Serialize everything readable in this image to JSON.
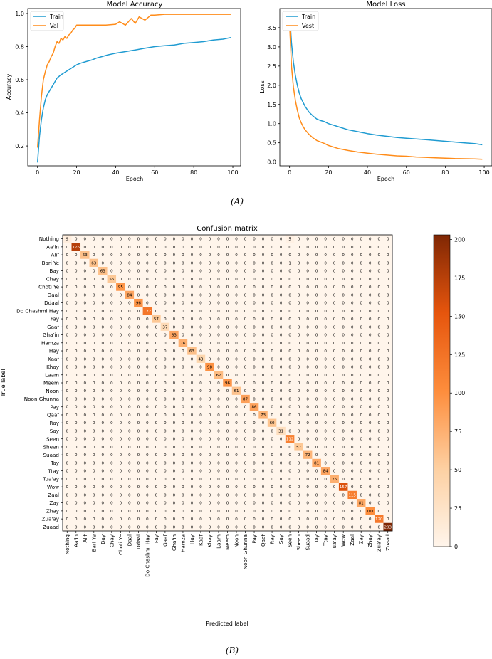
{
  "accuracy_chart": {
    "type": "line",
    "title": "Model Accuracy",
    "xlabel": "Epoch",
    "ylabel": "Accuracy",
    "xlim": [
      -5,
      104
    ],
    "ylim": [
      0.08,
      1.03
    ],
    "xticks": [
      0,
      20,
      40,
      60,
      80,
      100
    ],
    "yticks": [
      0.2,
      0.4,
      0.6,
      0.8,
      1.0
    ],
    "ytick_labels": [
      "0.2",
      "0.4",
      "0.6",
      "0.8",
      "1.0"
    ],
    "legend": "upper-left",
    "series": [
      {
        "name": "Train",
        "color": "#1f9bd1",
        "x": [
          0,
          1,
          2,
          3,
          4,
          5,
          6,
          7,
          8,
          9,
          10,
          12,
          14,
          16,
          18,
          20,
          22,
          25,
          28,
          30,
          33,
          36,
          40,
          45,
          50,
          55,
          60,
          65,
          70,
          75,
          80,
          85,
          90,
          95,
          99
        ],
        "y": [
          0.1,
          0.26,
          0.36,
          0.43,
          0.48,
          0.51,
          0.53,
          0.55,
          0.57,
          0.59,
          0.61,
          0.63,
          0.645,
          0.66,
          0.675,
          0.69,
          0.7,
          0.71,
          0.72,
          0.73,
          0.74,
          0.75,
          0.76,
          0.77,
          0.78,
          0.79,
          0.8,
          0.805,
          0.81,
          0.82,
          0.825,
          0.83,
          0.84,
          0.845,
          0.855
        ]
      },
      {
        "name": "Val",
        "color": "#ff8c1a",
        "x": [
          0,
          1,
          2,
          3,
          4,
          5,
          6,
          7,
          8,
          9,
          10,
          11,
          12,
          13,
          14,
          15,
          16,
          17,
          18,
          19,
          20,
          21,
          22,
          25,
          30,
          35,
          40,
          42,
          45,
          48,
          50,
          52,
          55,
          58,
          60,
          65,
          70,
          75,
          80,
          85,
          90,
          95,
          99
        ],
        "y": [
          0.19,
          0.36,
          0.5,
          0.6,
          0.65,
          0.69,
          0.71,
          0.74,
          0.76,
          0.8,
          0.83,
          0.82,
          0.85,
          0.84,
          0.86,
          0.85,
          0.87,
          0.88,
          0.9,
          0.91,
          0.93,
          0.93,
          0.93,
          0.93,
          0.93,
          0.93,
          0.935,
          0.95,
          0.93,
          0.97,
          0.94,
          0.98,
          0.96,
          0.99,
          0.99,
          0.995,
          0.995,
          0.995,
          0.995,
          0.995,
          0.995,
          0.995,
          0.995
        ]
      }
    ]
  },
  "loss_chart": {
    "type": "line",
    "title": "Model Loss",
    "xlabel": "Epoch",
    "ylabel": "Loss",
    "xlim": [
      -5,
      104
    ],
    "ylim": [
      -0.1,
      4.0
    ],
    "xticks": [
      0,
      20,
      40,
      60,
      80,
      100
    ],
    "yticks": [
      0.0,
      0.5,
      1.0,
      1.5,
      2.0,
      2.5,
      3.0,
      3.5
    ],
    "ytick_labels": [
      "0.0",
      "0.5",
      "1.0",
      "1.5",
      "2.0",
      "2.5",
      "3.0",
      "3.5"
    ],
    "legend": "upper-left",
    "series": [
      {
        "name": "Train",
        "color": "#1f9bd1",
        "x": [
          0,
          1,
          2,
          3,
          4,
          5,
          6,
          7,
          8,
          10,
          12,
          14,
          16,
          18,
          20,
          25,
          30,
          35,
          40,
          45,
          50,
          55,
          60,
          65,
          70,
          75,
          80,
          85,
          90,
          95,
          99
        ],
        "y": [
          3.9,
          3.1,
          2.6,
          2.25,
          2.0,
          1.8,
          1.65,
          1.55,
          1.45,
          1.3,
          1.2,
          1.12,
          1.08,
          1.05,
          1.0,
          0.92,
          0.84,
          0.79,
          0.74,
          0.7,
          0.67,
          0.64,
          0.62,
          0.6,
          0.58,
          0.56,
          0.54,
          0.52,
          0.5,
          0.48,
          0.45
        ]
      },
      {
        "name": "Vest",
        "color": "#ff8c1a",
        "x": [
          0,
          1,
          2,
          3,
          4,
          5,
          6,
          7,
          8,
          10,
          12,
          14,
          16,
          18,
          20,
          25,
          30,
          35,
          40,
          45,
          50,
          55,
          60,
          65,
          70,
          75,
          80,
          85,
          90,
          95,
          99
        ],
        "y": [
          3.6,
          2.5,
          1.95,
          1.6,
          1.35,
          1.15,
          1.02,
          0.92,
          0.84,
          0.72,
          0.63,
          0.56,
          0.52,
          0.48,
          0.43,
          0.35,
          0.3,
          0.26,
          0.23,
          0.2,
          0.18,
          0.16,
          0.15,
          0.13,
          0.12,
          0.11,
          0.1,
          0.09,
          0.085,
          0.08,
          0.07
        ]
      }
    ]
  },
  "caption_a": "(A)",
  "caption_b": "(B)",
  "confusion_matrix": {
    "type": "heatmap",
    "title": "Confusion matrix",
    "xlabel": "Predicted label",
    "ylabel": "True label",
    "colormap": "Oranges",
    "vmin": 0,
    "vmax": 203,
    "colorbar_ticks": [
      0,
      25,
      50,
      75,
      100,
      125,
      150,
      175,
      200
    ],
    "labels": [
      "Nothing",
      "Aa'in",
      "Alif",
      "Bari Ye",
      "Bay",
      "Chay",
      "Choti Ye",
      "Daal",
      "Ddaal",
      "Do Chashmi Hay",
      "Fay",
      "Gaaf",
      "Gha'in",
      "Hamza",
      "Hay",
      "Kaaf",
      "Khay",
      "Laam",
      "Meem",
      "Noon",
      "Noon Ghunna",
      "Pay",
      "Qaaf",
      "Ray",
      "Say",
      "Seen",
      "Sheen",
      "Suaad",
      "Tay",
      "Ttay",
      "Tua'ay",
      "Wow",
      "Zaal",
      "Zay",
      "Zhay",
      "Zua'ay",
      "Zuaad"
    ],
    "diagonal": [
      9,
      176,
      63,
      63,
      63,
      56,
      95,
      84,
      96,
      122,
      57,
      37,
      83,
      76,
      63,
      43,
      98,
      67,
      96,
      61,
      87,
      86,
      73,
      60,
      31,
      112,
      57,
      72,
      81,
      84,
      76,
      157,
      115,
      81,
      101,
      120,
      203
    ],
    "off_diagonal": [
      {
        "row": 0,
        "col": 25,
        "value": 5
      },
      {
        "row": 3,
        "col": 25,
        "value": 1
      }
    ]
  }
}
